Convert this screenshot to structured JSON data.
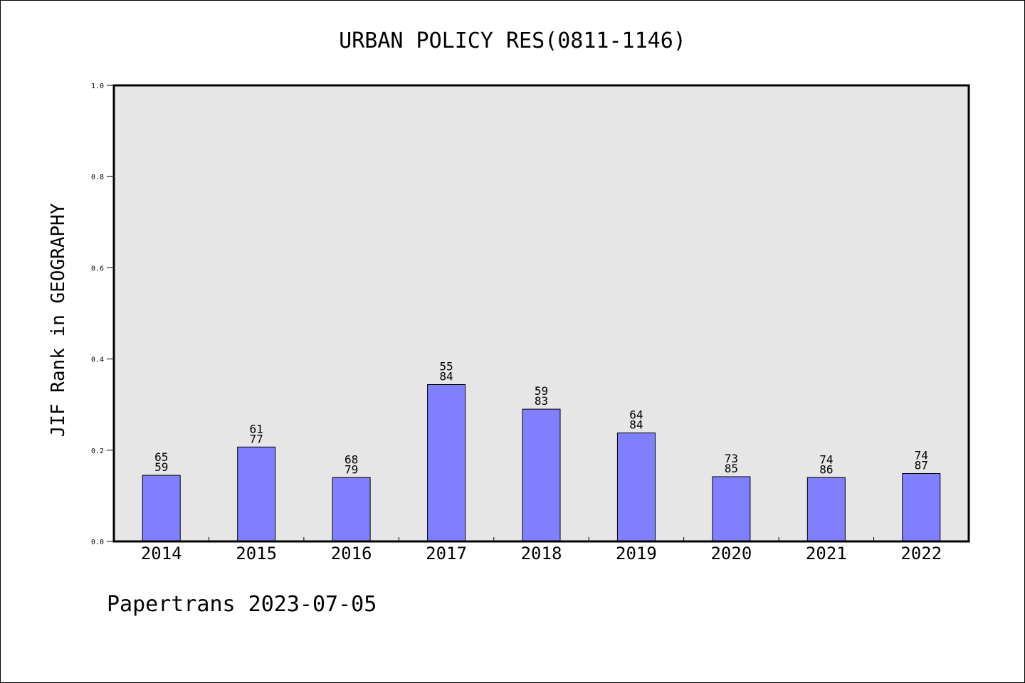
{
  "chart_data": {
    "type": "bar",
    "title": "URBAN POLICY RES(0811-1146)",
    "xlabel": "",
    "ylabel": "JIF Rank in GEOGRAPHY",
    "ylim": [
      0,
      1.0
    ],
    "y_ticks": [
      "0.0",
      "0.2",
      "0.4",
      "0.6",
      "0.8",
      "1.0"
    ],
    "categories": [
      "2014",
      "2015",
      "2016",
      "2017",
      "2018",
      "2019",
      "2020",
      "2021",
      "2022"
    ],
    "values": [
      0.145,
      0.207,
      0.14,
      0.344,
      0.29,
      0.238,
      0.142,
      0.14,
      0.149
    ],
    "labels_top": [
      "65",
      "61",
      "68",
      "55",
      "59",
      "64",
      "73",
      "74",
      "74"
    ],
    "labels_bottom": [
      "59",
      "77",
      "79",
      "84",
      "83",
      "84",
      "85",
      "86",
      "87"
    ],
    "grid": false,
    "colors": {
      "bar": "#8080ff",
      "plot_bg": "#e6e6e6"
    }
  },
  "footer": "Papertrans 2023-07-05"
}
